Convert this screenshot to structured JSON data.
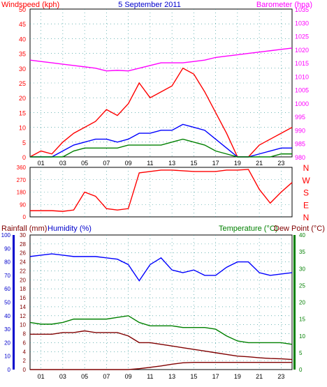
{
  "chart_data": [
    {
      "type": "line",
      "title": "5 September 2011",
      "ylabel": "Windspeed (kph)",
      "y2label": "Barometer (hpa)",
      "ylim": [
        0,
        50
      ],
      "y2lim": [
        980,
        1035
      ],
      "x": [
        0,
        1,
        2,
        3,
        4,
        5,
        6,
        7,
        8,
        9,
        10,
        11,
        12,
        13,
        14,
        15,
        16,
        17,
        18,
        19,
        20,
        21,
        22,
        23,
        24
      ],
      "xticks": [
        "01",
        "03",
        "05",
        "07",
        "09",
        "11",
        "13",
        "15",
        "17",
        "19",
        "21",
        "23"
      ],
      "yticks": [
        "0",
        "5",
        "10",
        "15",
        "20",
        "25",
        "30",
        "35",
        "40",
        "45",
        "50"
      ],
      "y2ticks": [
        "980",
        "985",
        "990",
        "995",
        "1000",
        "1005",
        "1010",
        "1015",
        "1020",
        "1025",
        "1030",
        "1035"
      ],
      "series": [
        {
          "name": "Windspeed (kph)",
          "color": "#ff0000",
          "values": [
            0,
            2,
            1,
            5,
            8,
            10,
            12,
            16,
            14,
            18,
            25,
            20,
            22,
            24,
            30,
            28,
            22,
            15,
            8,
            0,
            0,
            4,
            6,
            8,
            10
          ]
        },
        {
          "name": "Barometer (hpa)",
          "color": "#ff00ff",
          "values": [
            1016,
            1015.5,
            1015,
            1014.5,
            1014,
            1013.5,
            1013,
            1012,
            1012.2,
            1012,
            1013,
            1014,
            1015,
            1015,
            1015,
            1015.5,
            1016,
            1017,
            1017.5,
            1018,
            1018.5,
            1019,
            1019.5,
            1020,
            1020.5
          ]
        },
        {
          "color": "#0000ff",
          "values": [
            0,
            0,
            0,
            2,
            4,
            5,
            6,
            6,
            5,
            6,
            8,
            8,
            9,
            9,
            11,
            10,
            9,
            6,
            3,
            0,
            0,
            1,
            2,
            3,
            3
          ]
        },
        {
          "color": "#008000",
          "values": [
            0,
            0,
            0,
            0,
            2,
            3,
            3,
            3,
            3,
            4,
            4,
            4,
            4,
            5,
            6,
            5,
            4,
            2,
            1,
            0,
            0,
            0,
            0,
            1,
            1
          ]
        }
      ]
    },
    {
      "type": "line",
      "ylim": [
        0,
        360
      ],
      "yticks": [
        "0",
        "90",
        "180",
        "270",
        "360"
      ],
      "compass": [
        "N",
        "W",
        "S",
        "E",
        "N"
      ],
      "series": [
        {
          "color": "#ff0000",
          "values": [
            45,
            45,
            45,
            40,
            50,
            180,
            150,
            60,
            50,
            60,
            320,
            330,
            340,
            340,
            335,
            330,
            330,
            330,
            340,
            340,
            345,
            200,
            100,
            180,
            250
          ]
        }
      ]
    },
    {
      "type": "line",
      "ylabel": "Humidity (%)",
      "ylabel2": "Rainfall (mm)",
      "y2label": "Temperature (°C)",
      "y2label2": "Dew Point (°C)",
      "ylim": [
        0,
        100
      ],
      "ylim_rain": [
        0,
        30
      ],
      "y2lim": [
        0,
        40
      ],
      "xticks": [
        "01",
        "03",
        "05",
        "07",
        "09",
        "11",
        "13",
        "15",
        "17",
        "19",
        "21",
        "23"
      ],
      "humidity_ticks": [
        "0",
        "10",
        "20",
        "30",
        "40",
        "50",
        "60",
        "70",
        "80",
        "90",
        "100"
      ],
      "rain_ticks": [
        "0",
        "2",
        "4",
        "6",
        "8",
        "10",
        "12",
        "14",
        "16",
        "18",
        "20",
        "22",
        "24",
        "26",
        "28",
        "30"
      ],
      "temp_ticks": [
        "0",
        "5",
        "10",
        "15",
        "20",
        "25",
        "30",
        "35",
        "40"
      ],
      "series": [
        {
          "name": "Humidity (%)",
          "color": "#0000ff",
          "values": [
            84,
            85,
            86,
            85,
            84,
            84,
            84,
            83,
            82,
            78,
            66,
            78,
            83,
            74,
            72,
            74,
            70,
            70,
            76,
            80,
            80,
            72,
            70,
            71,
            72
          ]
        },
        {
          "name": "Temperature (°C)",
          "color": "#008000",
          "values": [
            14,
            13.5,
            13.5,
            14,
            15,
            15,
            15,
            15,
            15.5,
            16,
            14,
            13,
            13,
            13,
            12.5,
            12.5,
            12.5,
            12,
            10,
            8.5,
            8,
            8,
            8,
            8,
            7.5
          ]
        },
        {
          "name": "Dew Point (°C)",
          "color": "#800000",
          "values": [
            10.5,
            10.5,
            10.5,
            11,
            11,
            11.5,
            11,
            11,
            11,
            10,
            8,
            8,
            7.5,
            7,
            6.5,
            6,
            5.5,
            5,
            4.5,
            4,
            3.8,
            3.5,
            3.3,
            3.2,
            3
          ]
        },
        {
          "name": "Rainfall (mm)",
          "color": "#800000",
          "values": [
            0,
            0,
            0,
            0,
            0,
            0,
            0,
            0,
            0,
            0,
            0.2,
            0.5,
            0.8,
            1.2,
            1.5,
            1.6,
            1.6,
            1.6,
            1.6,
            1.6,
            1.6,
            1.6,
            1.6,
            1.6,
            1.6
          ]
        }
      ]
    }
  ]
}
